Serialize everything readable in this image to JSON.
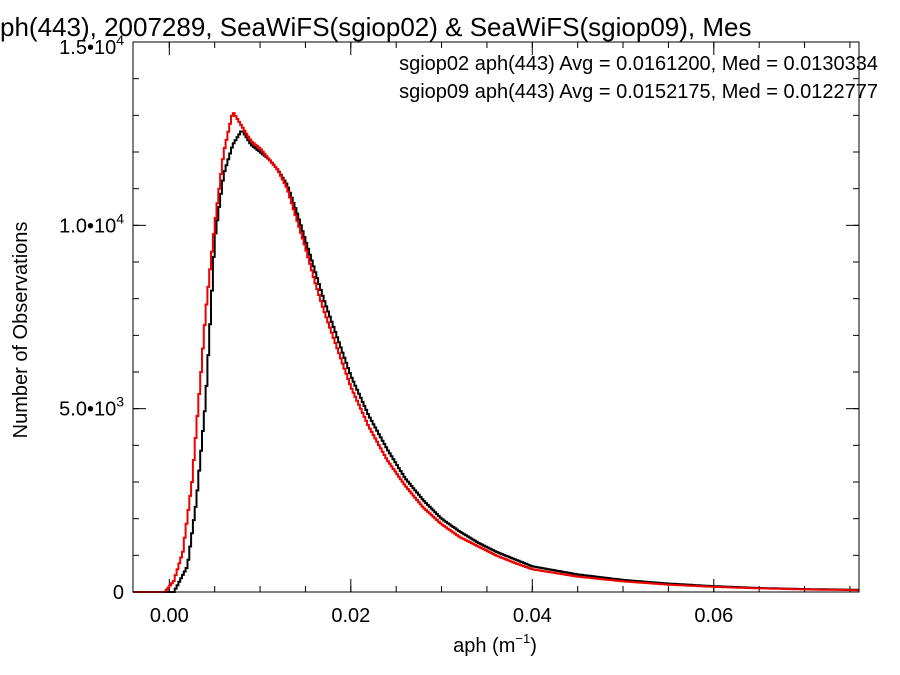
{
  "chart_data": {
    "type": "histogram-step",
    "title": "ph(443), 2007289, SeaWiFS(sgiop02) & SeaWiFS(sgiop09), Mes",
    "xlabel_main": "aph (m",
    "xlabel_exp": "−1",
    "xlabel_close": ")",
    "ylabel": "Number of Observations",
    "xlim": [
      -0.004,
      0.076
    ],
    "ylim": [
      0,
      15000
    ],
    "xticks": [
      0.0,
      0.02,
      0.04,
      0.06
    ],
    "xtick_labels": [
      "0.00",
      "0.02",
      "0.04",
      "0.06"
    ],
    "xminor_step": 0.005,
    "yticks": [
      0,
      5000,
      10000,
      15000
    ],
    "ytick_labels": [
      {
        "mantissa": "0",
        "exp": ""
      },
      {
        "mantissa": "5.0•10",
        "exp": "3"
      },
      {
        "mantissa": "1.0•10",
        "exp": "4"
      },
      {
        "mantissa": "1.5•10",
        "exp": "4"
      }
    ],
    "yminor_step": 1000,
    "legend_position": "top-right",
    "grid": false,
    "series": [
      {
        "name": "sgiop02",
        "color": "#000000",
        "annotation": "sgiop02 aph(443) Avg = 0.0161200, Med = 0.0130334",
        "x": [
          0.0005,
          0.002,
          0.003,
          0.004,
          0.0045,
          0.005,
          0.006,
          0.007,
          0.008,
          0.009,
          0.01,
          0.011,
          0.012,
          0.013,
          0.014,
          0.015,
          0.016,
          0.017,
          0.018,
          0.019,
          0.02,
          0.022,
          0.024,
          0.026,
          0.028,
          0.03,
          0.032,
          0.034,
          0.036,
          0.038,
          0.04,
          0.045,
          0.05,
          0.055,
          0.06,
          0.065,
          0.07,
          0.076
        ],
        "y": [
          0,
          700,
          2500,
          5200,
          7300,
          9600,
          11400,
          12200,
          12600,
          12200,
          12000,
          11800,
          11500,
          11100,
          10400,
          9600,
          8800,
          8000,
          7300,
          6600,
          5900,
          4800,
          3900,
          3100,
          2500,
          2000,
          1650,
          1350,
          1100,
          900,
          700,
          480,
          330,
          230,
          160,
          110,
          80,
          60
        ]
      },
      {
        "name": "sgiop09",
        "color": "#ee0000",
        "annotation": "sgiop09 aph(443) Avg = 0.0152175, Med = 0.0122777",
        "x": [
          -0.0005,
          0.0005,
          0.0015,
          0.0025,
          0.0035,
          0.004,
          0.005,
          0.006,
          0.007,
          0.008,
          0.009,
          0.01,
          0.011,
          0.012,
          0.013,
          0.014,
          0.015,
          0.016,
          0.017,
          0.018,
          0.019,
          0.02,
          0.022,
          0.024,
          0.026,
          0.028,
          0.03,
          0.032,
          0.034,
          0.036,
          0.038,
          0.04,
          0.045,
          0.05,
          0.055,
          0.06,
          0.065,
          0.07,
          0.076
        ],
        "y": [
          0,
          300,
          1100,
          3000,
          6000,
          7600,
          10000,
          12000,
          13100,
          12700,
          12300,
          12100,
          11800,
          11500,
          11000,
          10200,
          9400,
          8500,
          7700,
          7000,
          6300,
          5600,
          4500,
          3600,
          2900,
          2300,
          1850,
          1500,
          1250,
          1000,
          800,
          620,
          420,
          290,
          200,
          140,
          100,
          70,
          50
        ]
      }
    ]
  }
}
